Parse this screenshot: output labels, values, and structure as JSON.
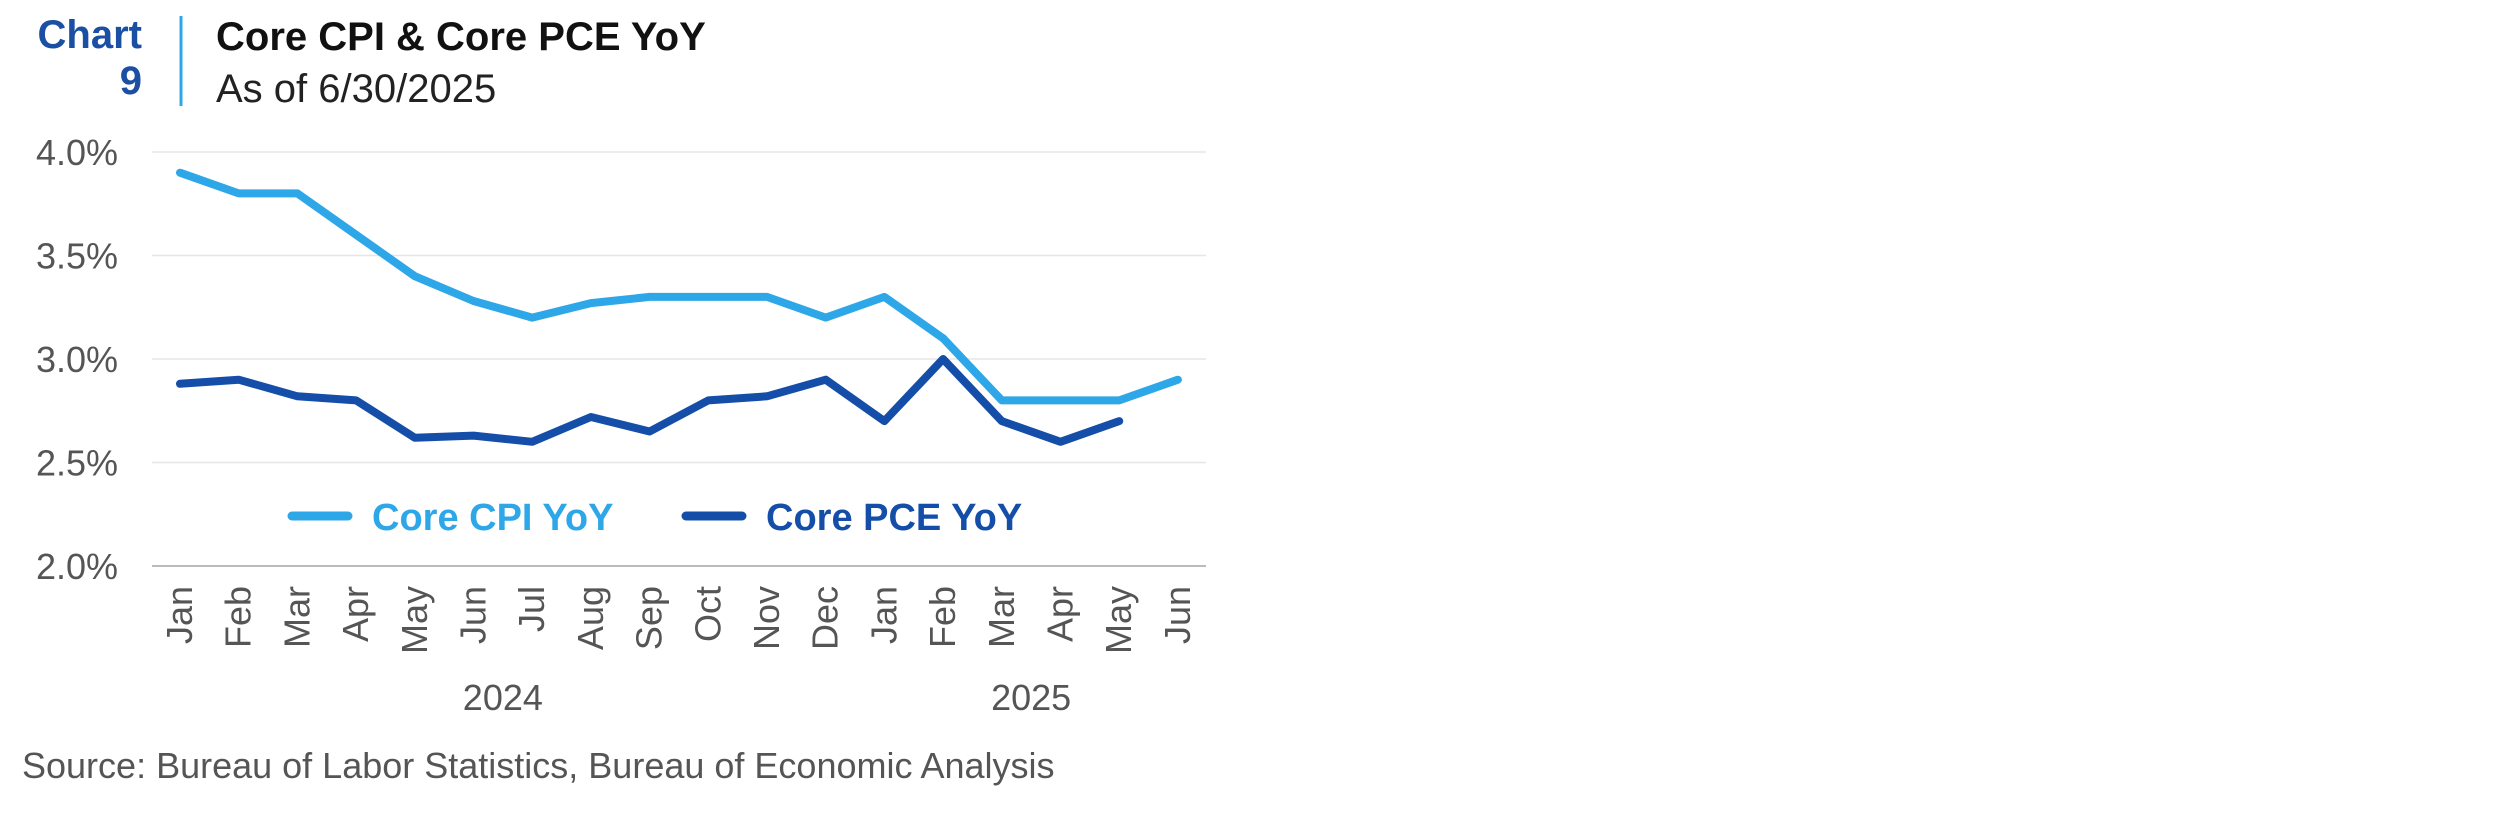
{
  "header": {
    "chart_tag_line1": "Chart",
    "chart_tag_line2": "9",
    "title": "Core CPI & Core PCE YoY",
    "subtitle": "As of 6/30/2025"
  },
  "footer": {
    "source": "Source: Bureau of Labor Statistics, Bureau of Economic Analysis"
  },
  "colors": {
    "tag": "#1a4fa3",
    "cpi": "#2ea7e8",
    "pce": "#144ea8",
    "text": "#555555",
    "title": "#111111",
    "grid": "#e6e6e6",
    "axis": "#bbbbbb"
  },
  "chart_data": {
    "type": "line",
    "title": "Core CPI & Core PCE YoY",
    "subtitle": "As of 6/30/2025",
    "categories": [
      "Jan",
      "Feb",
      "Mar",
      "Apr",
      "May",
      "Jun",
      "Jul",
      "Aug",
      "Sep",
      "Oct",
      "Nov",
      "Dec",
      "Jan",
      "Feb",
      "Mar",
      "Apr",
      "May",
      "Jun"
    ],
    "year_groups": [
      {
        "label": "2024",
        "from": 0,
        "to": 11
      },
      {
        "label": "2025",
        "from": 12,
        "to": 17
      }
    ],
    "ylim": [
      2.0,
      4.0
    ],
    "yticks": [
      2.0,
      2.5,
      3.0,
      3.5,
      4.0
    ],
    "ytick_labels": [
      "2.0%",
      "2.5%",
      "3.0%",
      "3.5%",
      "4.0%"
    ],
    "grid": true,
    "legend_position": "inside-bottom-center",
    "series": [
      {
        "name": "Core CPI YoY",
        "color_key": "cpi",
        "values": [
          3.9,
          3.8,
          3.8,
          3.6,
          3.4,
          3.28,
          3.2,
          3.27,
          3.3,
          3.3,
          3.3,
          3.2,
          3.3,
          3.1,
          2.8,
          2.8,
          2.8,
          2.9
        ]
      },
      {
        "name": "Core PCE YoY",
        "color_key": "pce",
        "values": [
          2.88,
          2.9,
          2.82,
          2.8,
          2.62,
          2.63,
          2.6,
          2.72,
          2.65,
          2.8,
          2.82,
          2.9,
          2.7,
          3.0,
          2.7,
          2.6,
          2.7,
          null
        ]
      }
    ]
  }
}
